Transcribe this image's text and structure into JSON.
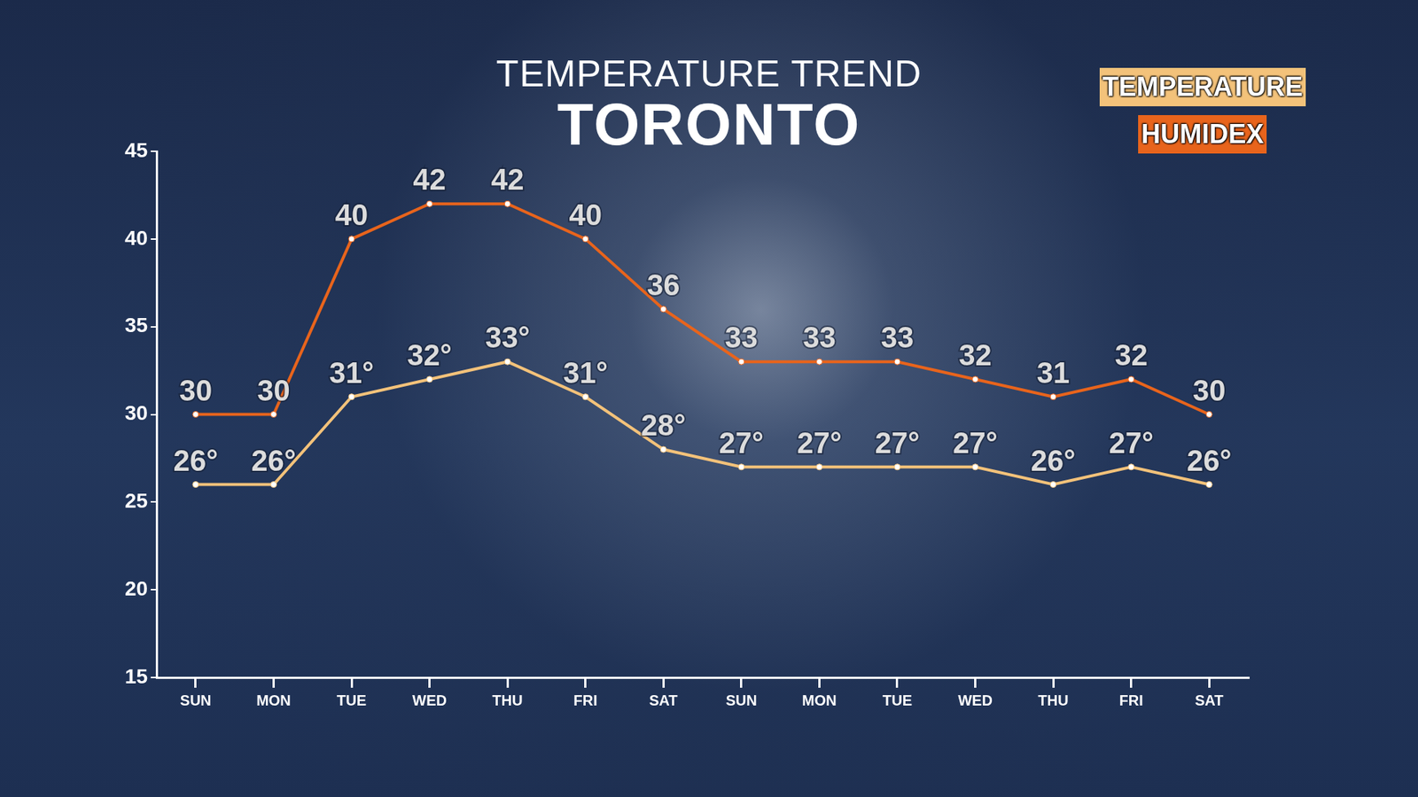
{
  "chart_data": {
    "type": "line",
    "title": "TEMPERATURE TREND",
    "subtitle": "TORONTO",
    "categories": [
      "SUN",
      "MON",
      "TUE",
      "WED",
      "THU",
      "FRI",
      "SAT",
      "SUN",
      "MON",
      "TUE",
      "WED",
      "THU",
      "FRI",
      "SAT"
    ],
    "series": [
      {
        "name": "TEMPERATURE",
        "color": "#f3c27a",
        "values": [
          26,
          26,
          31,
          32,
          33,
          31,
          28,
          27,
          27,
          27,
          27,
          26,
          27,
          26
        ],
        "value_labels": [
          "26°",
          "26°",
          "31°",
          "32°",
          "33°",
          "31°",
          "28°",
          "27°",
          "27°",
          "27°",
          "27°",
          "26°",
          "27°",
          "26°"
        ]
      },
      {
        "name": "HUMIDEX",
        "color": "#e8641c",
        "values": [
          30,
          30,
          40,
          42,
          42,
          40,
          36,
          33,
          33,
          33,
          32,
          31,
          32,
          30
        ]
      }
    ],
    "ylim": [
      15,
      45
    ],
    "yticks": [
      15,
      20,
      25,
      30,
      35,
      40,
      45
    ],
    "grid": false,
    "legend": "top-right",
    "data_labels": true,
    "marker": "circle"
  }
}
